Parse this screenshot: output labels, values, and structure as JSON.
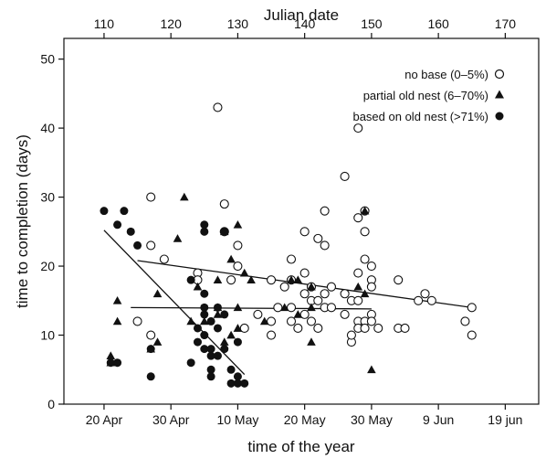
{
  "chart_data": {
    "type": "scatter",
    "title": "",
    "top_axis": {
      "label": "Julian date",
      "ticks": [
        110,
        120,
        130,
        140,
        150,
        160,
        170
      ],
      "range": [
        104,
        175
      ]
    },
    "x_axis": {
      "label": "time of the year",
      "tick_labels": [
        {
          "label": "20 Apr",
          "x": 110
        },
        {
          "label": "30 Apr",
          "x": 120
        },
        {
          "label": "10 May",
          "x": 130
        },
        {
          "label": "20 May",
          "x": 140
        },
        {
          "label": "30 May",
          "x": 150
        },
        {
          "label": "9 Jun",
          "x": 160
        },
        {
          "label": "19 jun",
          "x": 170
        }
      ],
      "range": [
        104,
        175
      ]
    },
    "y_axis": {
      "label": "time to completion (days)",
      "ticks": [
        0,
        10,
        20,
        30,
        40,
        50
      ],
      "range": [
        0,
        53
      ]
    },
    "legend_position": "top-right",
    "colors": {
      "series": "#111111",
      "background": "#ffffff"
    },
    "series": [
      {
        "name": "no base (0–5%)",
        "marker": "open-circle",
        "points": [
          [
            115,
            12
          ],
          [
            117,
            30
          ],
          [
            117,
            23
          ],
          [
            117,
            10
          ],
          [
            119,
            21
          ],
          [
            124,
            19
          ],
          [
            124,
            18
          ],
          [
            127,
            43
          ],
          [
            128,
            29
          ],
          [
            128,
            25
          ],
          [
            129,
            18
          ],
          [
            130,
            23
          ],
          [
            130,
            20
          ],
          [
            131,
            11
          ],
          [
            133,
            13
          ],
          [
            135,
            12
          ],
          [
            135,
            18
          ],
          [
            135,
            10
          ],
          [
            136,
            14
          ],
          [
            137,
            17
          ],
          [
            138,
            21
          ],
          [
            138,
            12
          ],
          [
            138,
            14
          ],
          [
            138,
            18
          ],
          [
            139,
            11
          ],
          [
            140,
            16
          ],
          [
            140,
            19
          ],
          [
            140,
            25
          ],
          [
            140,
            13
          ],
          [
            141,
            17
          ],
          [
            141,
            15
          ],
          [
            141,
            12
          ],
          [
            142,
            24
          ],
          [
            142,
            11
          ],
          [
            142,
            15
          ],
          [
            143,
            23
          ],
          [
            143,
            28
          ],
          [
            143,
            14
          ],
          [
            143,
            16
          ],
          [
            144,
            14
          ],
          [
            144,
            17
          ],
          [
            146,
            33
          ],
          [
            146,
            13
          ],
          [
            146,
            16
          ],
          [
            147,
            9
          ],
          [
            147,
            10
          ],
          [
            147,
            15
          ],
          [
            148,
            40
          ],
          [
            148,
            27
          ],
          [
            148,
            19
          ],
          [
            148,
            15
          ],
          [
            148,
            12
          ],
          [
            148,
            11
          ],
          [
            149,
            28
          ],
          [
            149,
            25
          ],
          [
            149,
            21
          ],
          [
            149,
            12
          ],
          [
            149,
            11
          ],
          [
            150,
            20
          ],
          [
            150,
            18
          ],
          [
            150,
            17
          ],
          [
            150,
            13
          ],
          [
            150,
            12
          ],
          [
            151,
            11
          ],
          [
            154,
            18
          ],
          [
            154,
            11
          ],
          [
            155,
            11
          ],
          [
            157,
            15
          ],
          [
            158,
            16
          ],
          [
            159,
            15
          ],
          [
            164,
            12
          ],
          [
            165,
            14
          ],
          [
            165,
            10
          ]
        ]
      },
      {
        "name": "partial old nest (6–70%)",
        "marker": "filled-triangle",
        "points": [
          [
            111,
            7
          ],
          [
            111,
            6
          ],
          [
            112,
            12
          ],
          [
            112,
            15
          ],
          [
            117,
            8
          ],
          [
            118,
            16
          ],
          [
            118,
            9
          ],
          [
            121,
            24
          ],
          [
            122,
            30
          ],
          [
            123,
            12
          ],
          [
            124,
            17
          ],
          [
            125,
            12
          ],
          [
            127,
            14
          ],
          [
            127,
            13
          ],
          [
            127,
            18
          ],
          [
            128,
            9
          ],
          [
            128,
            25
          ],
          [
            129,
            10
          ],
          [
            129,
            21
          ],
          [
            130,
            11
          ],
          [
            130,
            14
          ],
          [
            130,
            26
          ],
          [
            131,
            19
          ],
          [
            132,
            18
          ],
          [
            134,
            12
          ],
          [
            137,
            14
          ],
          [
            138,
            18
          ],
          [
            139,
            18
          ],
          [
            139,
            13
          ],
          [
            141,
            17
          ],
          [
            141,
            14
          ],
          [
            141,
            9
          ],
          [
            148,
            17
          ],
          [
            149,
            28
          ],
          [
            149,
            16
          ],
          [
            150,
            5
          ]
        ]
      },
      {
        "name": "based on old nest (>71%)",
        "marker": "filled-circle",
        "points": [
          [
            110,
            28
          ],
          [
            112,
            26
          ],
          [
            113,
            28
          ],
          [
            114,
            25
          ],
          [
            115,
            23
          ],
          [
            111,
            6
          ],
          [
            112,
            6
          ],
          [
            117,
            8
          ],
          [
            117,
            4
          ],
          [
            123,
            6
          ],
          [
            123,
            18
          ],
          [
            124,
            9
          ],
          [
            124,
            11
          ],
          [
            125,
            10
          ],
          [
            125,
            8
          ],
          [
            125,
            13
          ],
          [
            125,
            14
          ],
          [
            125,
            16
          ],
          [
            125,
            26
          ],
          [
            125,
            25
          ],
          [
            126,
            8
          ],
          [
            126,
            7
          ],
          [
            126,
            5
          ],
          [
            126,
            4
          ],
          [
            126,
            12
          ],
          [
            127,
            11
          ],
          [
            127,
            14
          ],
          [
            127,
            7
          ],
          [
            128,
            8
          ],
          [
            128,
            13
          ],
          [
            128,
            25
          ],
          [
            129,
            3
          ],
          [
            129,
            5
          ],
          [
            130,
            4
          ],
          [
            130,
            3
          ],
          [
            131,
            3
          ],
          [
            130,
            9
          ]
        ]
      }
    ],
    "trend_lines": [
      {
        "series": "based on old nest (>71%)",
        "from": [
          110,
          25.2
        ],
        "to": [
          131,
          4.3
        ]
      },
      {
        "series": "partial old nest (6–70%)",
        "from": [
          114,
          14.0
        ],
        "to": [
          150,
          13.8
        ]
      },
      {
        "series": "no base (0–5%)",
        "from": [
          115,
          20.8
        ],
        "to": [
          165,
          14.0
        ]
      }
    ]
  }
}
